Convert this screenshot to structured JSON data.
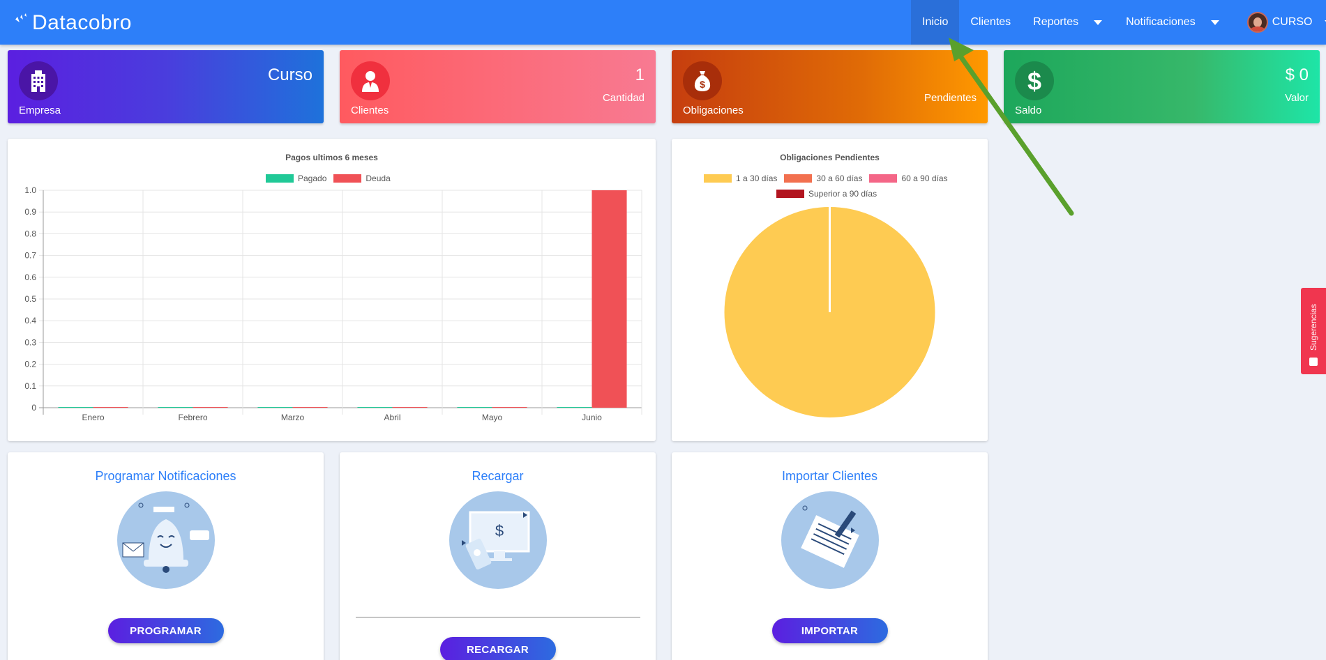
{
  "brand": {
    "part1": "Data",
    "part2": "cobro"
  },
  "nav": {
    "items": [
      {
        "label": "Inicio",
        "active": true
      },
      {
        "label": "Clientes",
        "active": false
      },
      {
        "label": "Reportes",
        "dropdown": true
      },
      {
        "label": "Notificaciones",
        "dropdown": true
      }
    ],
    "user": "CURSO"
  },
  "cards": [
    {
      "label": "Empresa",
      "value": "Curso",
      "sub": "",
      "icon": "building-icon"
    },
    {
      "label": "Clientes",
      "value": "1",
      "sub": "Cantidad",
      "icon": "person-icon"
    },
    {
      "label": "Obligaciones",
      "value": "",
      "sub": "Pendientes",
      "icon": "money-bag-icon"
    },
    {
      "label": "Saldo",
      "value": "$ 0",
      "sub": "Valor",
      "icon": "dollar-icon"
    }
  ],
  "bar_chart": {
    "title": "Pagos ultimos 6 meses",
    "legend": [
      {
        "name": "Pagado",
        "color": "#20c997"
      },
      {
        "name": "Deuda",
        "color": "#f05156"
      }
    ]
  },
  "pie_chart": {
    "title": "Obligaciones Pendientes",
    "legend": [
      {
        "name": "1 a 30 días",
        "color": "#fecb52"
      },
      {
        "name": "30 a 60 días",
        "color": "#f2704f"
      },
      {
        "name": "60 a 90 días",
        "color": "#f46687"
      },
      {
        "name": "Superior a 90 días",
        "color": "#b2151f"
      }
    ]
  },
  "chart_data": [
    {
      "type": "bar",
      "title": "Pagos ultimos 6 meses",
      "categories": [
        "Enero",
        "Febrero",
        "Marzo",
        "Abril",
        "Mayo",
        "Junio"
      ],
      "series": [
        {
          "name": "Pagado",
          "values": [
            0,
            0,
            0,
            0,
            0,
            0
          ],
          "color": "#20c997"
        },
        {
          "name": "Deuda",
          "values": [
            0,
            0,
            0,
            0,
            0,
            1
          ],
          "color": "#f05156"
        }
      ],
      "ylim": [
        0,
        1
      ],
      "yticks": [
        "1.0",
        "0.9",
        "0.8",
        "0.7",
        "0.6",
        "0.5",
        "0.4",
        "0.3",
        "0.2",
        "0.1",
        "0"
      ],
      "legend": "top",
      "grid": true
    },
    {
      "type": "pie",
      "title": "Obligaciones Pendientes",
      "labels": [
        "1 a 30 días",
        "30 a 60 días",
        "60 a 90 días",
        "Superior a 90 días"
      ],
      "values": [
        1,
        0,
        0,
        0
      ],
      "colors": [
        "#fecb52",
        "#f2704f",
        "#f46687",
        "#b2151f"
      ],
      "legend": "top"
    }
  ],
  "actions": [
    {
      "title": "Programar Notificaciones",
      "button": "PROGRAMAR",
      "icon": "bell-notification-icon"
    },
    {
      "title": "Recargar",
      "button": "RECARGAR",
      "icon": "recharge-monitor-icon"
    },
    {
      "title": "Importar Clientes",
      "button": "IMPORTAR",
      "icon": "import-document-icon"
    }
  ],
  "suggestions": {
    "label": "Sugerencias"
  }
}
